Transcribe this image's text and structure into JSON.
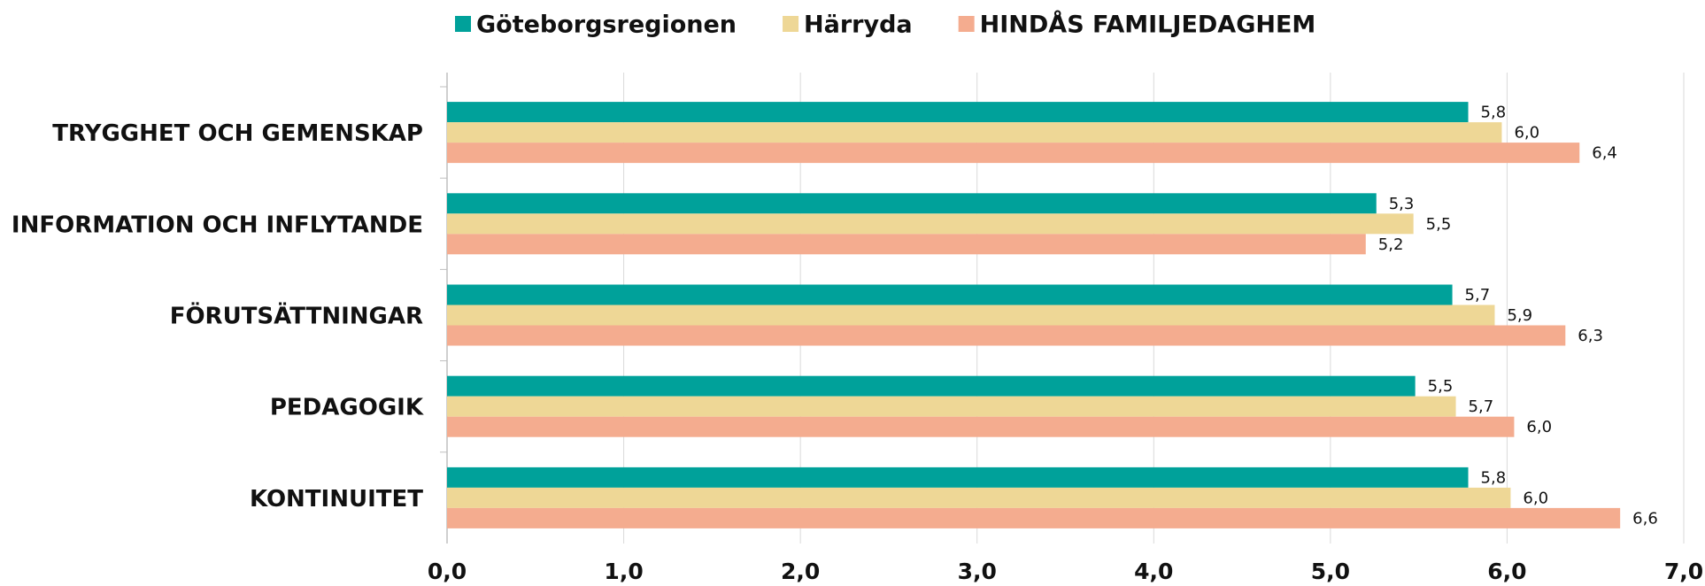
{
  "chart_data": {
    "type": "hbar",
    "categories": [
      "TRYGGHET OCH GEMENSKAP",
      "INFORMATION OCH INFLYTANDE",
      "FÖRUTSÄTTNINGAR",
      "PEDAGOGIK",
      "KONTINUITET"
    ],
    "series": [
      {
        "name": "Göteborgsregionen",
        "color": "#00a19a",
        "values": [
          5.78,
          5.26,
          5.69,
          5.48,
          5.78
        ],
        "value_labels": [
          "5,8",
          "5,3",
          "5,7",
          "5,5",
          "5,8"
        ]
      },
      {
        "name": "Härryda",
        "color": "#eed796",
        "values": [
          5.97,
          5.47,
          5.93,
          5.71,
          6.02
        ],
        "value_labels": [
          "6,0",
          "5,5",
          "5,9",
          "5,7",
          "6,0"
        ]
      },
      {
        "name": "HINDÅS FAMILJEDAGHEM",
        "color": "#f4ac8f",
        "values": [
          6.41,
          5.2,
          6.33,
          6.04,
          6.64
        ],
        "value_labels": [
          "6,4",
          "5,2",
          "6,3",
          "6,0",
          "6,6"
        ]
      }
    ],
    "xlim": [
      0,
      7
    ],
    "xticks": [
      {
        "value": 0,
        "label": "0,0"
      },
      {
        "value": 1,
        "label": "1,0"
      },
      {
        "value": 2,
        "label": "2,0"
      },
      {
        "value": 3,
        "label": "3,0"
      },
      {
        "value": 4,
        "label": "4,0"
      },
      {
        "value": 5,
        "label": "5,0"
      },
      {
        "value": 6,
        "label": "6,0"
      },
      {
        "value": 7,
        "label": "7,0"
      }
    ],
    "grid": true,
    "legend": "top"
  }
}
